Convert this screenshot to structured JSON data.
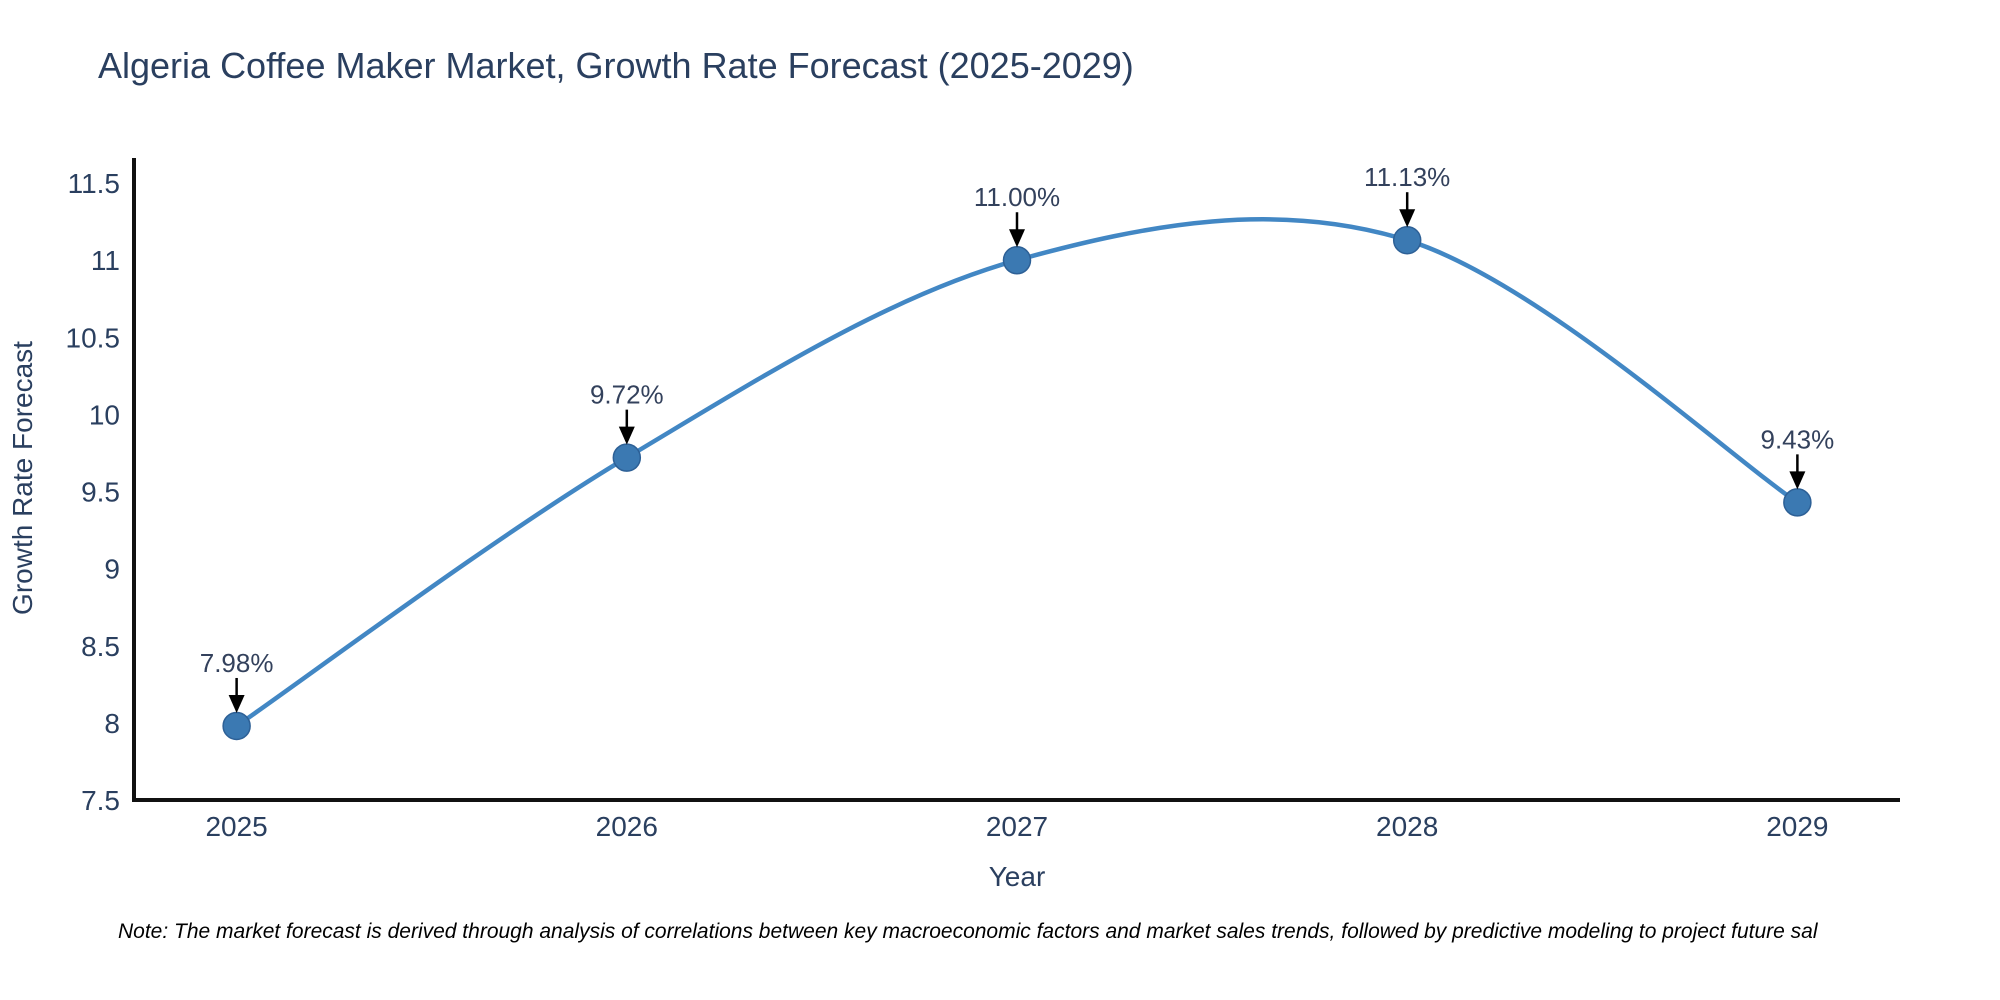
{
  "title": "Algeria Coffee Maker Market, Growth Rate Forecast (2025-2029)",
  "note": "Note: The market forecast is derived through analysis of correlations between key macroeconomic factors and market sales trends, followed by predictive modeling to project future sal",
  "chart_data": {
    "type": "line",
    "line_shape": "spline",
    "title": "Algeria Coffee Maker Market, Growth Rate Forecast (2025-2029)",
    "xlabel": "Year",
    "ylabel": "Growth Rate Forecast",
    "x": [
      2025,
      2026,
      2027,
      2028,
      2029
    ],
    "y": [
      7.98,
      9.72,
      11.0,
      11.13,
      9.43
    ],
    "point_labels": [
      "7.98%",
      "9.72%",
      "11.00%",
      "11.13%",
      "9.43%"
    ],
    "x_ticks": [
      2025,
      2026,
      2027,
      2028,
      2029
    ],
    "x_tick_labels": [
      "2025",
      "2026",
      "2027",
      "2028",
      "2029"
    ],
    "y_ticks": [
      7.5,
      8,
      8.5,
      9,
      9.5,
      10,
      10.5,
      11,
      11.5
    ],
    "y_tick_labels": [
      "7.5",
      "8",
      "8.5",
      "9",
      "9.5",
      "10",
      "10.5",
      "11",
      "11.5"
    ],
    "x_range": [
      2024.737,
      2029.263
    ],
    "y_range": [
      7.5,
      11.65
    ],
    "grid": false,
    "legend": "none",
    "annotations_have_arrows": true,
    "colors": {
      "line": "#4287c4",
      "marker": "#3b79b2",
      "marker_edge": "#2d6096",
      "axis": "#111111",
      "text": "#2a3f5f",
      "annotation_arrow": "#000000",
      "note_text": "#000000",
      "background": "#ffffff"
    }
  }
}
